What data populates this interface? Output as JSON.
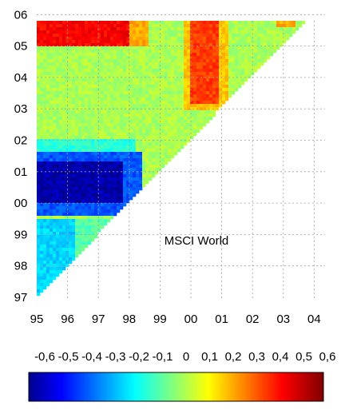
{
  "chart_data": {
    "type": "heatmap",
    "title": "",
    "annotation": "MSCI World",
    "xlabel": "",
    "ylabel": "",
    "x_tick_labels": [
      "95",
      "96",
      "97",
      "98",
      "99",
      "00",
      "01",
      "02",
      "03",
      "04"
    ],
    "y_tick_labels": [
      "97",
      "98",
      "99",
      "00",
      "01",
      "02",
      "03",
      "04",
      "05",
      "06"
    ],
    "grid": true,
    "region": "upper-left triangle (start year on x, end year on y)",
    "colormap": "jet",
    "colors": [
      "#00008f",
      "#0000ff",
      "#00ffff",
      "#ffff00",
      "#ff0000",
      "#800000"
    ],
    "colorbar": {
      "range": [
        -0.6,
        0.6
      ],
      "tick_labels": [
        "-0,6",
        "-0,5",
        "-0,4",
        "-0,3",
        "-0,2",
        "-0,1",
        "0",
        "0,1",
        "0,2",
        "0,3",
        "0,4",
        "0,5",
        "0,6"
      ]
    },
    "approx_values": [
      {
        "x": "95-98",
        "y": "05-06",
        "value": 0.45
      },
      {
        "x": "95-98",
        "y": "00-01",
        "value": -0.55
      },
      {
        "x": "95-99",
        "y": "03-05",
        "value": 0.05
      },
      {
        "x": "00-01",
        "y": "03-06",
        "value": 0.4
      },
      {
        "x": "95-96",
        "y": "97-99",
        "value": -0.2
      }
    ]
  }
}
